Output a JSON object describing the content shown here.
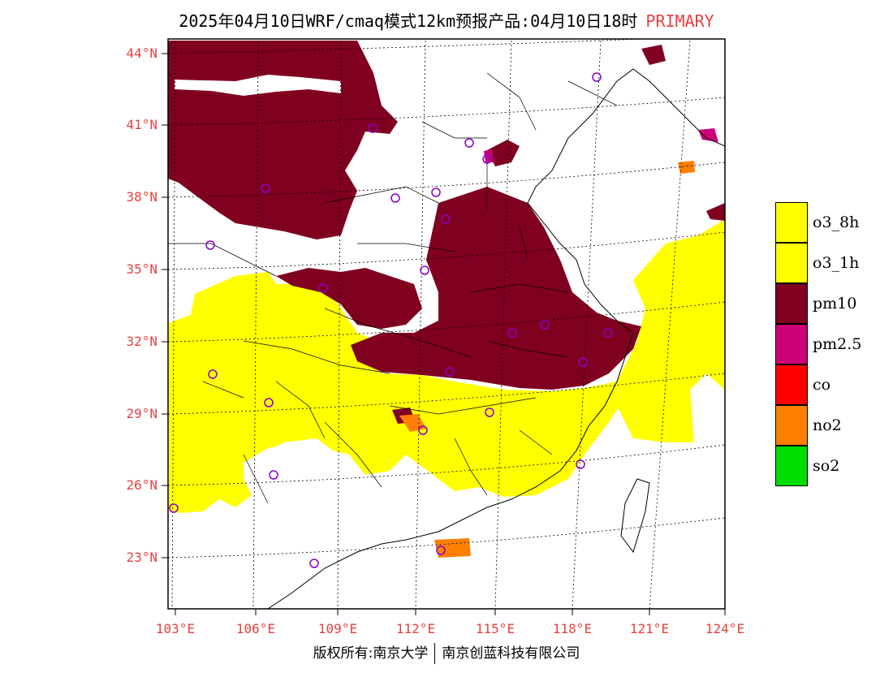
{
  "title": {
    "main": "2025年04月10日WRF/cmaq模式12km预报产品:04月10日18时",
    "tag": "PRIMARY"
  },
  "axes": {
    "lat_labels": [
      "44°N",
      "41°N",
      "38°N",
      "35°N",
      "32°N",
      "29°N",
      "26°N",
      "23°N"
    ],
    "lon_labels": [
      "103°E",
      "106°E",
      "109°E",
      "112°E",
      "115°E",
      "118°E",
      "121°E",
      "124°E"
    ]
  },
  "legend": {
    "items": [
      {
        "label": "o3_8h",
        "color": "#ffff00"
      },
      {
        "label": "o3_1h",
        "color": "#ffff00"
      },
      {
        "label": "pm10",
        "color": "#800020"
      },
      {
        "label": "pm2.5",
        "color": "#cc0077"
      },
      {
        "label": "co",
        "color": "#ff0000"
      },
      {
        "label": "no2",
        "color": "#ff7f00"
      },
      {
        "label": "so2",
        "color": "#00dd00"
      }
    ]
  },
  "footer": {
    "left": "版权所有:南京大学",
    "right": "南京创蓝科技有限公司"
  },
  "colors": {
    "axis_label": "#e8423e",
    "pm10": "#800020",
    "o3": "#ffff00",
    "no2": "#ff7f00",
    "pm25": "#cc0077",
    "station_marker": "#8800cc"
  }
}
